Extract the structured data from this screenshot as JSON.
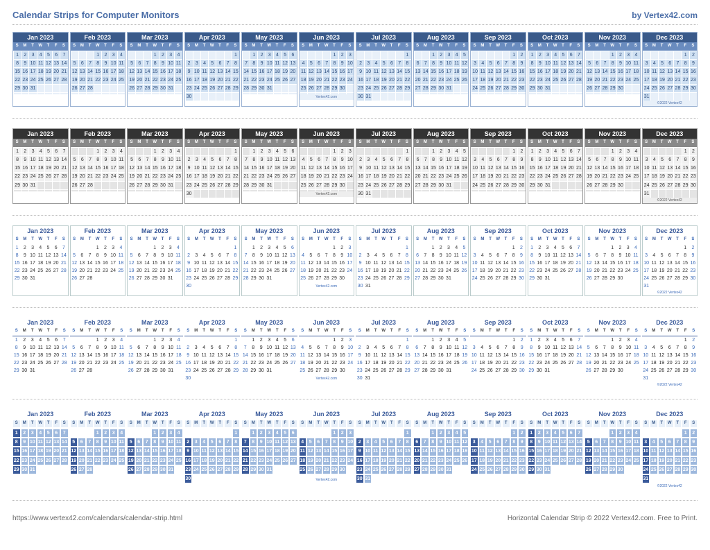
{
  "header": {
    "title": "Calendar Strips for Computer Monitors",
    "by": "by Vertex42.com"
  },
  "footer": {
    "url": "https://www.vertex42.com/calendars/calendar-strip.html",
    "right": "Horizontal Calendar Strip © 2022 Vertex42.com. Free to Print."
  },
  "year": 2023,
  "dow_letters": [
    "S",
    "M",
    "T",
    "W",
    "T",
    "F",
    "S"
  ],
  "credit_text": "Vertex42.com",
  "copyright_text": "©2022 Vertex42",
  "months": [
    {
      "name": "Jan 2023",
      "start": 0,
      "days": 31
    },
    {
      "name": "Feb 2023",
      "start": 3,
      "days": 28
    },
    {
      "name": "Mar 2023",
      "start": 3,
      "days": 31
    },
    {
      "name": "Apr 2023",
      "start": 6,
      "days": 30
    },
    {
      "name": "May 2023",
      "start": 1,
      "days": 31
    },
    {
      "name": "Jun 2023",
      "start": 4,
      "days": 30
    },
    {
      "name": "Jul 2023",
      "start": 6,
      "days": 31
    },
    {
      "name": "Aug 2023",
      "start": 2,
      "days": 31
    },
    {
      "name": "Sep 2023",
      "start": 5,
      "days": 30
    },
    {
      "name": "Oct 2023",
      "start": 0,
      "days": 31
    },
    {
      "name": "Nov 2023",
      "start": 3,
      "days": 30
    },
    {
      "name": "Dec 2023",
      "start": 5,
      "days": 31
    }
  ],
  "strip_styles": [
    {
      "id": "s1",
      "class": "s1"
    },
    {
      "id": "s2",
      "class": "s2"
    },
    {
      "id": "s3",
      "class": "s3"
    },
    {
      "id": "s4",
      "class": "s4"
    },
    {
      "id": "s5",
      "class": "s5"
    }
  ],
  "colors": {
    "brand_blue": "#4a6da7",
    "s1_header": "#3a5a8a",
    "s1_dow": "#6a8cbf",
    "s1_cell": "#cfe0f2",
    "s2_header": "#333333",
    "s2_dow": "#888888",
    "s2_cell": "#f1f1f1",
    "s5_cell": "#9db8dd",
    "s5_sun": "#3a5a9a"
  }
}
